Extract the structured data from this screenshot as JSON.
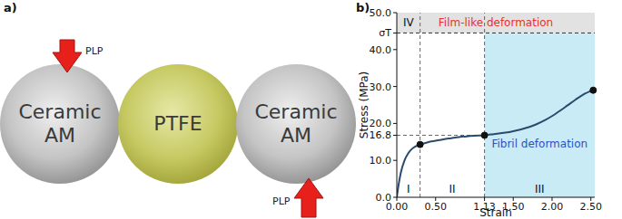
{
  "panel_labels": [
    "a)",
    "b)"
  ],
  "diagram": {
    "nodes": [
      {
        "label": "Ceramic AM"
      },
      {
        "label": "PTFE"
      },
      {
        "label": "Ceramic AM"
      }
    ],
    "arrows": [
      {
        "label": "PLP"
      },
      {
        "label": "PLP"
      }
    ]
  },
  "chart_data": {
    "type": "line",
    "x_label": "Strain",
    "y_label": "Stress (MPa)",
    "x": [
      0,
      0.02,
      0.05,
      0.1,
      0.15,
      0.2,
      0.3,
      0.4,
      0.5,
      0.6,
      0.7,
      0.8,
      0.9,
      1.0,
      1.13,
      1.25,
      1.4,
      1.5,
      1.6,
      1.7,
      1.8,
      1.9,
      2.0,
      2.1,
      2.2,
      2.3,
      2.4,
      2.53
    ],
    "values": [
      0,
      3,
      6.5,
      10,
      12,
      13.2,
      14.3,
      14.9,
      15.3,
      15.7,
      16.0,
      16.3,
      16.5,
      16.65,
      16.8,
      17.1,
      17.5,
      17.9,
      18.4,
      19.0,
      19.8,
      20.8,
      22.0,
      23.4,
      24.9,
      26.4,
      27.8,
      29.0
    ],
    "color": "#2b4a6b",
    "xlim": [
      0,
      2.55
    ],
    "ylim": [
      0,
      50
    ],
    "xticks": [
      {
        "value": 0,
        "label": "0.00"
      },
      {
        "value": 0.5,
        "label": "0.50"
      },
      1.13,
      {
        "value": 1.5,
        "label": "1.50"
      },
      {
        "value": 2,
        "label": "2.00"
      },
      {
        "value": 2.5,
        "label": "2.50"
      }
    ],
    "yticks": [
      {
        "value": 0,
        "label": "0.0"
      },
      {
        "value": 10,
        "label": "10.0"
      },
      16.8,
      {
        "value": 20,
        "label": "20.0"
      },
      {
        "value": 30,
        "label": "30.0"
      },
      {
        "value": 40,
        "label": "40.0"
      },
      {
        "value": 44.5,
        "label": "σT"
      },
      {
        "value": 50,
        "label": "50.0"
      }
    ],
    "points": [
      {
        "x": 0.3,
        "y": 14.3
      },
      {
        "x": 1.13,
        "y": 16.8
      },
      {
        "x": 2.53,
        "y": 29.0
      }
    ],
    "regions": [
      {
        "label": "I",
        "x": [
          0,
          0.3
        ]
      },
      {
        "label": "II",
        "x": [
          0.3,
          1.13
        ]
      },
      {
        "label": "III",
        "x": [
          1.13,
          2.55
        ]
      },
      {
        "label": "IV",
        "x": [
          0,
          0.3
        ],
        "y": [
          44.5,
          50
        ]
      }
    ],
    "annotations": [
      {
        "text": "Film-like deformation",
        "color": "#e8312f",
        "x": [
          0,
          2.55
        ],
        "y": [
          44.5,
          50
        ]
      },
      {
        "text": "Fibril deformation",
        "color": "#2a52be",
        "x": [
          1.13,
          2.55
        ],
        "y": [
          0,
          44.5
        ]
      }
    ]
  }
}
